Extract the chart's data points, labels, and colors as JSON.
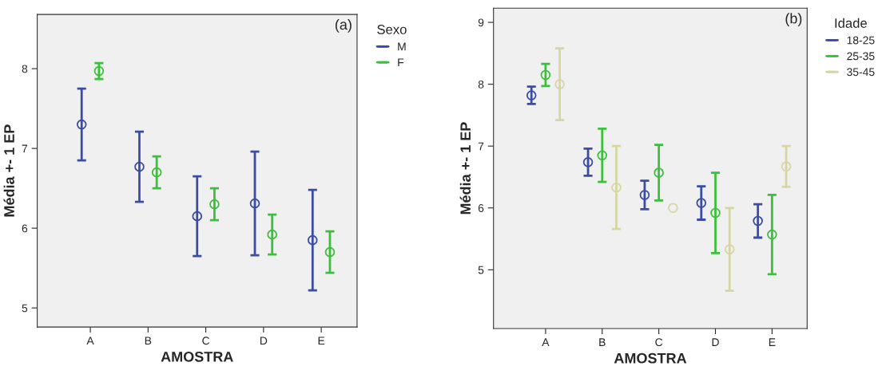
{
  "chart_data": [
    {
      "type": "scatter",
      "xlabel": "AMOSTRA",
      "ylabel": "Média +- 1 EP",
      "annotations": [
        "(a)"
      ],
      "legend_title": "Sexo",
      "legend": "right",
      "marker": "circle",
      "grid": false,
      "categories": [
        "A",
        "B",
        "C",
        "D",
        "E"
      ],
      "ylim": [
        4.76,
        8.68
      ],
      "yticks": [
        5,
        6,
        7,
        8
      ],
      "series": [
        {
          "name": "M",
          "color": "#3b4ca6",
          "values": [
            7.3,
            6.77,
            6.15,
            6.31,
            5.85
          ],
          "errors": [
            0.45,
            0.44,
            0.5,
            0.65,
            0.63
          ]
        },
        {
          "name": "F",
          "color": "#3cbf3c",
          "values": [
            7.97,
            6.7,
            6.3,
            5.92,
            5.7
          ],
          "errors": [
            0.1,
            0.2,
            0.2,
            0.25,
            0.26
          ]
        }
      ]
    },
    {
      "type": "scatter",
      "xlabel": "AMOSTRA",
      "ylabel": "Média +- 1 EP",
      "annotations": [
        "(b)"
      ],
      "legend_title": "Idade",
      "legend": "right",
      "marker": "circle",
      "grid": false,
      "categories": [
        "A",
        "B",
        "C",
        "D",
        "E"
      ],
      "ylim": [
        4.05,
        9.23
      ],
      "yticks": [
        5,
        6,
        7,
        8,
        9
      ],
      "series": [
        {
          "name": "18-25",
          "color": "#3b4ca6",
          "values": [
            7.82,
            6.74,
            6.21,
            6.08,
            5.79
          ],
          "errors": [
            0.14,
            0.22,
            0.23,
            0.27,
            0.27
          ]
        },
        {
          "name": "25-35",
          "color": "#3cbf3c",
          "values": [
            8.15,
            6.85,
            6.57,
            5.92,
            5.57
          ],
          "errors": [
            0.18,
            0.43,
            0.45,
            0.65,
            0.64
          ]
        },
        {
          "name": "35-45",
          "color": "#d9d5a3",
          "values": [
            8.0,
            6.33,
            6.0,
            5.33,
            6.67
          ],
          "errors": [
            0.58,
            0.67,
            null,
            0.67,
            0.33
          ]
        }
      ]
    }
  ]
}
